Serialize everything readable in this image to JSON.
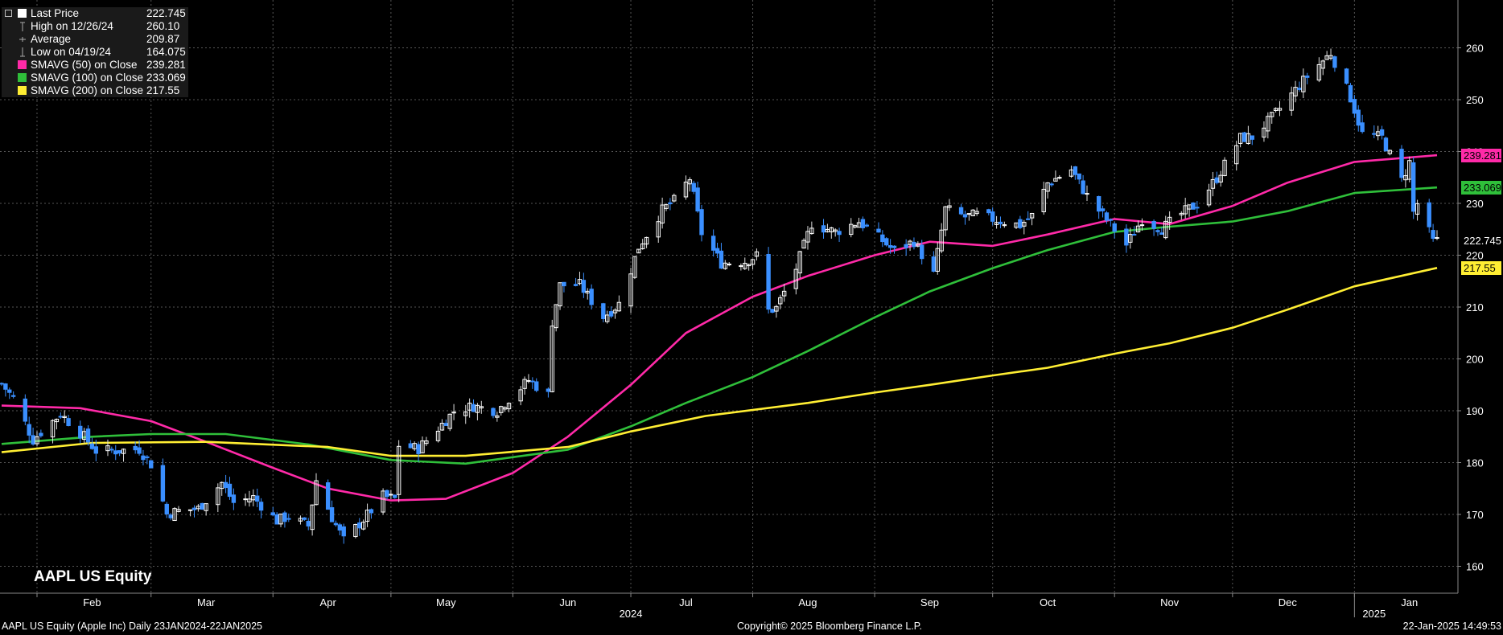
{
  "legend": [
    {
      "label": "Last Price",
      "value": "222.745",
      "symbol": "last-price-icon"
    },
    {
      "label": "High on 12/26/24",
      "value": "260.10",
      "symbol": "high-marker-icon"
    },
    {
      "label": "Average",
      "value": "209.87",
      "symbol": "average-marker-icon"
    },
    {
      "label": "Low on 04/19/24",
      "value": "164.075",
      "symbol": "low-marker-icon"
    },
    {
      "label": "SMAVG (50)  on Close",
      "value": "239.281",
      "color": "#ff2aa8"
    },
    {
      "label": "SMAVG (100)  on Close",
      "value": "233.069",
      "color": "#2fbf3a"
    },
    {
      "label": "SMAVG (200)  on Close",
      "value": "217.55",
      "color": "#ffee33"
    }
  ],
  "chart_title": "AAPL US Equity",
  "footer": {
    "left": "AAPL US Equity (Apple Inc)  Daily 23JAN2024-22JAN2025",
    "center": "Copyright© 2025 Bloomberg Finance L.P.",
    "right": "22-Jan-2025 14:49:53"
  },
  "colors": {
    "background": "#000000",
    "grid": "#555555",
    "up_candle": "#ffffff",
    "down_candle": "#3a8fff",
    "sma50": "#ff2aa8",
    "sma100": "#2fbf3a",
    "sma200": "#ffee33"
  },
  "chart_data": {
    "type": "candlestick",
    "title": "AAPL US Equity",
    "ylim": [
      155,
      265
    ],
    "y_ticks": [
      160,
      170,
      180,
      190,
      200,
      210,
      220,
      230,
      240,
      250,
      260
    ],
    "x_range": [
      "2024-01-23",
      "2025-01-22"
    ],
    "x_labels": [
      {
        "label": "Feb",
        "date": "2024-02-15"
      },
      {
        "label": "Mar",
        "date": "2024-03-15"
      },
      {
        "label": "Apr",
        "date": "2024-04-15"
      },
      {
        "label": "May",
        "date": "2024-05-15"
      },
      {
        "label": "Jun",
        "date": "2024-06-15"
      },
      {
        "label": "Jul",
        "date": "2024-07-15"
      },
      {
        "label": "Aug",
        "date": "2024-08-15"
      },
      {
        "label": "Sep",
        "date": "2024-09-15"
      },
      {
        "label": "Oct",
        "date": "2024-10-15"
      },
      {
        "label": "Nov",
        "date": "2024-11-15"
      },
      {
        "label": "Dec",
        "date": "2024-12-15"
      },
      {
        "label": "Jan",
        "date": "2025-01-15"
      }
    ],
    "year_labels": [
      {
        "label": "2024",
        "date": "2024-07-01"
      },
      {
        "label": "2025",
        "date": "2025-01-06"
      }
    ],
    "month_starts": [
      "2024-02-01",
      "2024-03-01",
      "2024-04-01",
      "2024-05-01",
      "2024-06-01",
      "2024-07-01",
      "2024-08-01",
      "2024-09-01",
      "2024-10-01",
      "2024-11-01",
      "2024-12-01",
      "2025-01-01"
    ],
    "price_path": [
      [
        "2024-01-23",
        195.2
      ],
      [
        "2024-01-26",
        192.4
      ],
      [
        "2024-01-31",
        184.4
      ],
      [
        "2024-02-02",
        185.9
      ],
      [
        "2024-02-07",
        189.4
      ],
      [
        "2024-02-13",
        185.0
      ],
      [
        "2024-02-16",
        182.3
      ],
      [
        "2024-02-21",
        182.3
      ],
      [
        "2024-02-27",
        182.6
      ],
      [
        "2024-03-01",
        179.7
      ],
      [
        "2024-03-05",
        170.1
      ],
      [
        "2024-03-08",
        170.7
      ],
      [
        "2024-03-13",
        171.1
      ],
      [
        "2024-03-19",
        176.1
      ],
      [
        "2024-03-22",
        172.3
      ],
      [
        "2024-03-27",
        173.3
      ],
      [
        "2024-04-02",
        168.8
      ],
      [
        "2024-04-05",
        169.6
      ],
      [
        "2024-04-10",
        167.8
      ],
      [
        "2024-04-12",
        176.6
      ],
      [
        "2024-04-16",
        169.4
      ],
      [
        "2024-04-19",
        165.0
      ],
      [
        "2024-04-24",
        169.0
      ],
      [
        "2024-04-29",
        173.5
      ],
      [
        "2024-05-02",
        173.0
      ],
      [
        "2024-05-03",
        183.4
      ],
      [
        "2024-05-08",
        182.7
      ],
      [
        "2024-05-14",
        187.4
      ],
      [
        "2024-05-17",
        189.9
      ],
      [
        "2024-05-22",
        190.9
      ],
      [
        "2024-05-28",
        189.99
      ],
      [
        "2024-05-31",
        192.3
      ],
      [
        "2024-06-05",
        195.9
      ],
      [
        "2024-06-10",
        193.1
      ],
      [
        "2024-06-11",
        207.2
      ],
      [
        "2024-06-13",
        214.2
      ],
      [
        "2024-06-18",
        214.3
      ],
      [
        "2024-06-24",
        208.1
      ],
      [
        "2024-06-28",
        210.6
      ],
      [
        "2024-07-03",
        221.6
      ],
      [
        "2024-07-09",
        228.7
      ],
      [
        "2024-07-12",
        230.5
      ],
      [
        "2024-07-16",
        234.8
      ],
      [
        "2024-07-19",
        224.3
      ],
      [
        "2024-07-24",
        218.5
      ],
      [
        "2024-07-30",
        218.8
      ],
      [
        "2024-08-02",
        219.9
      ],
      [
        "2024-08-05",
        209.3
      ],
      [
        "2024-08-07",
        209.8
      ],
      [
        "2024-08-12",
        217.5
      ],
      [
        "2024-08-16",
        226.1
      ],
      [
        "2024-08-22",
        224.5
      ],
      [
        "2024-08-28",
        226.5
      ],
      [
        "2024-09-03",
        222.8
      ],
      [
        "2024-09-06",
        220.8
      ],
      [
        "2024-09-11",
        222.7
      ],
      [
        "2024-09-16",
        216.3
      ],
      [
        "2024-09-19",
        228.9
      ],
      [
        "2024-09-24",
        227.4
      ],
      [
        "2024-09-27",
        227.8
      ],
      [
        "2024-10-02",
        226.8
      ],
      [
        "2024-10-08",
        225.8
      ],
      [
        "2024-10-11",
        227.6
      ],
      [
        "2024-10-15",
        233.9
      ],
      [
        "2024-10-21",
        236.5
      ],
      [
        "2024-10-25",
        231.4
      ],
      [
        "2024-10-31",
        225.9
      ],
      [
        "2024-11-04",
        222.0
      ],
      [
        "2024-11-08",
        226.96
      ],
      [
        "2024-11-13",
        225.1
      ],
      [
        "2024-11-18",
        228.0
      ],
      [
        "2024-11-22",
        229.9
      ],
      [
        "2024-11-27",
        234.9
      ],
      [
        "2024-12-03",
        242.6
      ],
      [
        "2024-12-06",
        242.8
      ],
      [
        "2024-12-11",
        246.5
      ],
      [
        "2024-12-16",
        251.0
      ],
      [
        "2024-12-20",
        254.5
      ],
      [
        "2024-12-26",
        259.0
      ],
      [
        "2024-12-31",
        250.4
      ],
      [
        "2025-01-03",
        243.4
      ],
      [
        "2025-01-08",
        242.7
      ],
      [
        "2025-01-13",
        234.4
      ],
      [
        "2025-01-15",
        237.9
      ],
      [
        "2025-01-16",
        228.3
      ],
      [
        "2025-01-17",
        229.98
      ],
      [
        "2025-01-21",
        222.6
      ],
      [
        "2025-01-22",
        222.745
      ]
    ],
    "series": [
      {
        "name": "SMAVG (50)  on Close",
        "color_key": "sma50",
        "points": [
          [
            "2024-01-23",
            191.0
          ],
          [
            "2024-02-12",
            190.5
          ],
          [
            "2024-03-01",
            188.0
          ],
          [
            "2024-03-15",
            184.0
          ],
          [
            "2024-04-01",
            179.0
          ],
          [
            "2024-04-15",
            175.0
          ],
          [
            "2024-05-01",
            172.7
          ],
          [
            "2024-05-15",
            173.0
          ],
          [
            "2024-06-01",
            178.0
          ],
          [
            "2024-06-15",
            185.0
          ],
          [
            "2024-07-01",
            195.0
          ],
          [
            "2024-07-15",
            205.0
          ],
          [
            "2024-08-01",
            212.0
          ],
          [
            "2024-08-15",
            216.0
          ],
          [
            "2024-09-01",
            220.0
          ],
          [
            "2024-09-15",
            222.6
          ],
          [
            "2024-10-01",
            221.8
          ],
          [
            "2024-10-15",
            224.0
          ],
          [
            "2024-11-01",
            227.0
          ],
          [
            "2024-11-15",
            226.0
          ],
          [
            "2024-12-01",
            229.5
          ],
          [
            "2024-12-15",
            234.0
          ],
          [
            "2025-01-01",
            238.0
          ],
          [
            "2025-01-22",
            239.281
          ]
        ]
      },
      {
        "name": "SMAVG (100)  on Close",
        "color_key": "sma100",
        "points": [
          [
            "2024-01-23",
            183.6
          ],
          [
            "2024-02-15",
            185.0
          ],
          [
            "2024-03-01",
            185.5
          ],
          [
            "2024-03-20",
            185.5
          ],
          [
            "2024-04-10",
            183.5
          ],
          [
            "2024-05-01",
            180.5
          ],
          [
            "2024-05-20",
            179.8
          ],
          [
            "2024-06-15",
            182.5
          ],
          [
            "2024-07-01",
            187.0
          ],
          [
            "2024-07-15",
            191.5
          ],
          [
            "2024-08-01",
            196.5
          ],
          [
            "2024-08-15",
            201.5
          ],
          [
            "2024-09-01",
            208.0
          ],
          [
            "2024-09-15",
            213.0
          ],
          [
            "2024-10-01",
            217.5
          ],
          [
            "2024-10-15",
            221.0
          ],
          [
            "2024-11-01",
            224.5
          ],
          [
            "2024-11-15",
            225.5
          ],
          [
            "2024-12-01",
            226.5
          ],
          [
            "2024-12-15",
            228.5
          ],
          [
            "2025-01-01",
            232.0
          ],
          [
            "2025-01-22",
            233.069
          ]
        ]
      },
      {
        "name": "SMAVG (200)  on Close",
        "color_key": "sma200",
        "points": [
          [
            "2024-01-23",
            182.0
          ],
          [
            "2024-02-15",
            183.8
          ],
          [
            "2024-03-15",
            184.0
          ],
          [
            "2024-04-15",
            183.0
          ],
          [
            "2024-05-01",
            181.3
          ],
          [
            "2024-05-20",
            181.3
          ],
          [
            "2024-06-15",
            183.0
          ],
          [
            "2024-07-01",
            186.0
          ],
          [
            "2024-07-20",
            189.0
          ],
          [
            "2024-08-15",
            191.5
          ],
          [
            "2024-09-01",
            193.5
          ],
          [
            "2024-09-15",
            195.0
          ],
          [
            "2024-10-01",
            196.8
          ],
          [
            "2024-10-15",
            198.3
          ],
          [
            "2024-11-01",
            201.0
          ],
          [
            "2024-11-15",
            203.0
          ],
          [
            "2024-12-01",
            206.0
          ],
          [
            "2024-12-15",
            209.5
          ],
          [
            "2025-01-01",
            214.0
          ],
          [
            "2025-01-22",
            217.55
          ]
        ]
      }
    ],
    "price_tags": [
      {
        "value": 239.281,
        "text": "239.281",
        "bg": "#ff2aa8",
        "fg": "#000000"
      },
      {
        "value": 233.069,
        "text": "233.069",
        "bg": "#2fbf3a",
        "fg": "#000000"
      },
      {
        "value": 222.745,
        "text": "222.745",
        "bg": "#000000",
        "fg": "#ffffff"
      },
      {
        "value": 217.55,
        "text": "217.55",
        "bg": "#ffee33",
        "fg": "#000000"
      }
    ]
  }
}
